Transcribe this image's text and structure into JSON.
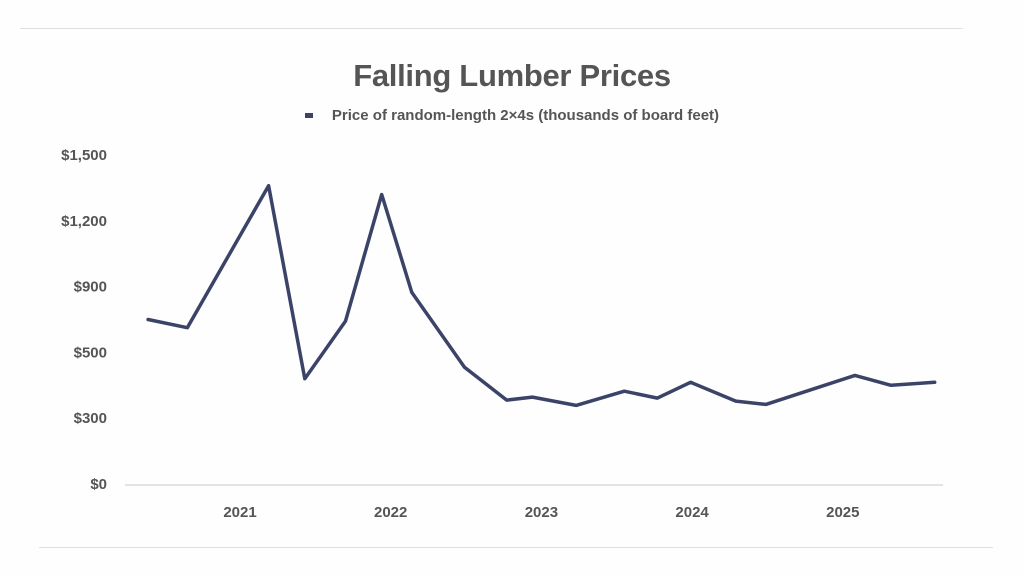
{
  "chart_data": {
    "type": "line",
    "title": "Falling Lumber Prices",
    "xlabel": "",
    "ylabel": "",
    "legend": {
      "placement": "top-center"
    },
    "grid": false,
    "x_ticks": [
      "2021",
      "2022",
      "2023",
      "2024",
      "2025"
    ],
    "x_tick_values": [
      2021,
      2022,
      2023,
      2024,
      2025
    ],
    "y_ticks": [
      "$0",
      "$300",
      "$500",
      "$900",
      "$1,200",
      "$1,500"
    ],
    "y_tick_values": [
      0,
      300,
      500,
      900,
      1200,
      1500
    ],
    "xlim": [
      2020.4,
      2025.62
    ],
    "ylim": [
      0,
      1500
    ],
    "series": [
      {
        "name": "Price of random-length 2×4s (thousands of board feet)",
        "color": "#3b4468",
        "x": [
          2020.39,
          2020.65,
          2021.19,
          2021.43,
          2021.7,
          2021.94,
          2022.14,
          2022.49,
          2022.77,
          2022.94,
          2023.23,
          2023.55,
          2023.77,
          2023.99,
          2024.29,
          2024.49,
          2024.78,
          2025.08,
          2025.32,
          2025.61
        ],
        "values": [
          700,
          650,
          1360,
          420,
          690,
          1320,
          865,
          455,
          355,
          364,
          339,
          382,
          361,
          409,
          352,
          342,
          385,
          430,
          400,
          409
        ]
      }
    ]
  }
}
